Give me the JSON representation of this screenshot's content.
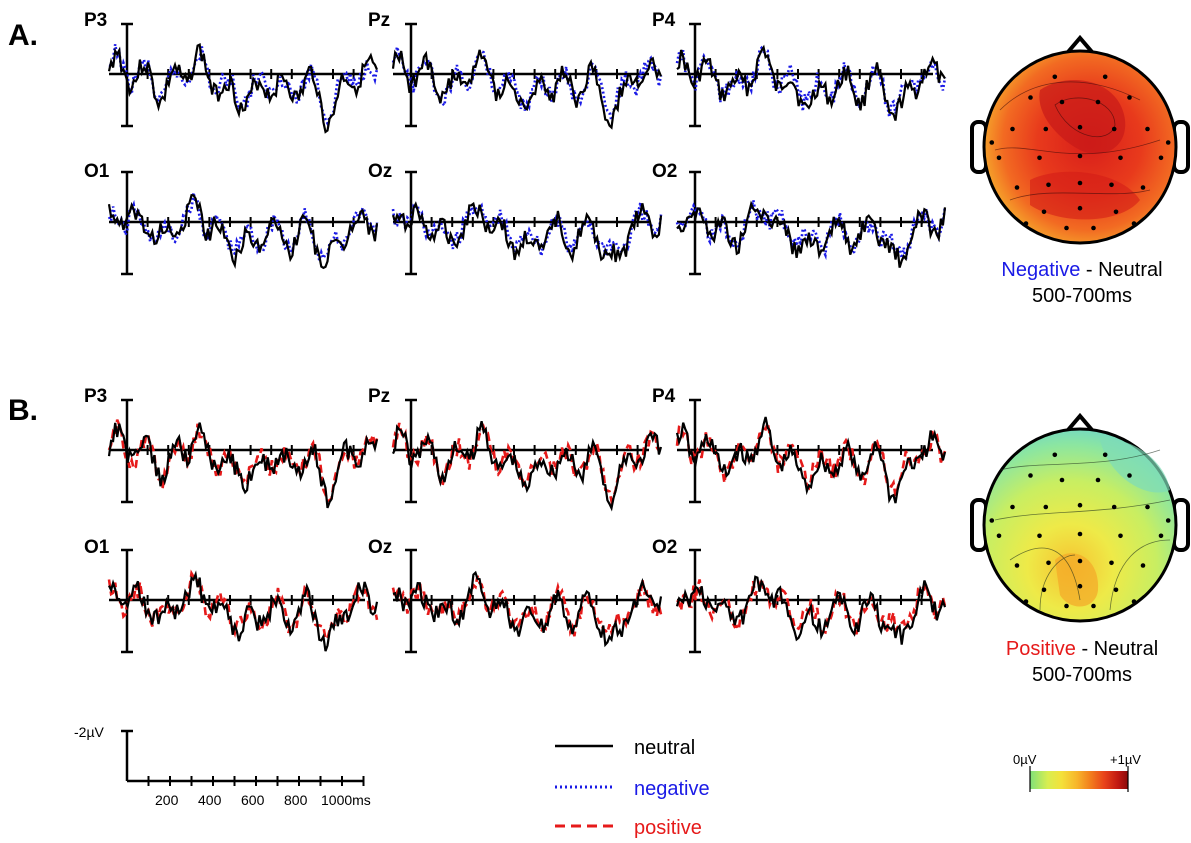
{
  "panels": [
    {
      "label": "A.",
      "channels": [
        "P3",
        "Pz",
        "P4",
        "O1",
        "Oz",
        "O2"
      ],
      "series": [
        "neutral",
        "negative"
      ],
      "map_caption": {
        "cond": "Negative",
        "cond_color": "#1a1ae6",
        "rest": " - Neutral",
        "window": "500-700ms"
      }
    },
    {
      "label": "B.",
      "channels": [
        "P3",
        "Pz",
        "P4",
        "O1",
        "Oz",
        "O2"
      ],
      "series": [
        "neutral",
        "positive"
      ],
      "map_caption": {
        "cond": "Positive",
        "cond_color": "#e61a1a",
        "rest": " - Neutral",
        "window": "500-700ms"
      }
    }
  ],
  "scale_bar": {
    "amplitude_label": "-2µV",
    "time_ticks": [
      "200",
      "400",
      "600",
      "800",
      "1000ms"
    ]
  },
  "legend": [
    {
      "label": "neutral",
      "color": "#000000",
      "style": "solid"
    },
    {
      "label": "negative",
      "color": "#1a1ae6",
      "style": "dotted"
    },
    {
      "label": "positive",
      "color": "#e61a1a",
      "style": "dashed"
    }
  ],
  "colorbar": {
    "min_label": "0µV",
    "max_label": "+1µV",
    "colors": [
      "#7fe07a",
      "#d8ee50",
      "#f4e13a",
      "#f7b52a",
      "#f27d1c",
      "#e8421a",
      "#c01812",
      "#8a0a0a"
    ]
  },
  "chart_data": {
    "type": "line",
    "title": "",
    "x_range_ms": [
      -100,
      1100
    ],
    "x_ticks_ms": [
      0,
      100,
      200,
      300,
      400,
      500,
      600,
      700,
      800,
      900,
      1000
    ],
    "y_unit": "µV",
    "y_scale_bar": -2,
    "y_axis_note": "negative plotted up",
    "topographic_window_ms": [
      500,
      700
    ],
    "colorbar_range_uv": [
      0,
      1
    ],
    "series": [
      {
        "name": "neutral",
        "color": "#000000",
        "style": "solid"
      },
      {
        "name": "negative",
        "color": "#1a1ae6",
        "style": "dotted"
      },
      {
        "name": "positive",
        "color": "#e61a1a",
        "style": "dashed"
      }
    ]
  }
}
